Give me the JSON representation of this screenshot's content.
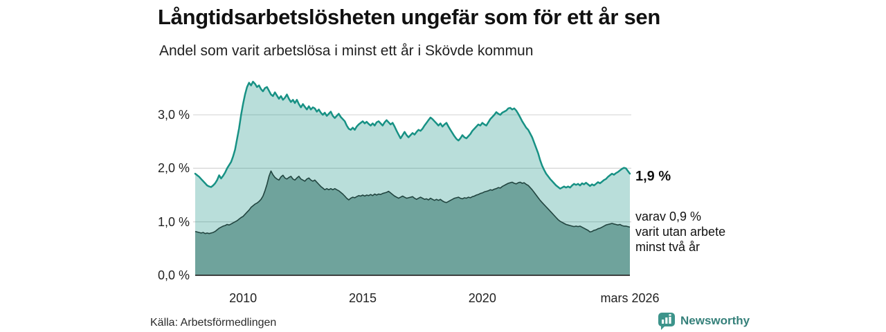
{
  "header": {
    "title": "Långtidsarbetslösheten ungefär som för ett år sen",
    "subtitle": "Andel som varit arbetslösa i minst ett år i Skövde kommun"
  },
  "annotations": {
    "primary_value": "1,9 %",
    "secondary_lines": [
      "varav 0,9 %",
      "varit utan arbete",
      "minst två år"
    ]
  },
  "footer": {
    "source": "Källa: Arbetsförmedlingen",
    "brand_name": "Newsworthy",
    "brand_icon": "bar-chart-speech-bubble-icon"
  },
  "colors": {
    "line_primary": "#179184",
    "area_primary": "rgba(23,145,132,0.30)",
    "line_secondary": "#21443f",
    "area_secondary": "#6fa39c",
    "gridline": "#d9d9d9",
    "axis_line": "#2b2b2b",
    "text": "#1a1a1a",
    "brand_teal": "#3d948b",
    "brand_text": "#35807a"
  },
  "chart_data": {
    "type": "area",
    "title": "Långtidsarbetslösheten ungefär som för ett år sen",
    "subtitle_as_ylabel": "Andel som varit arbetslösa i minst ett år i Skövde kommun",
    "unit": "%",
    "grid": "horizontal",
    "legend_position": "none",
    "x_domain": [
      2008.0,
      2026.1667
    ],
    "x_start": 2008.0,
    "x_step_years": 0.0833333,
    "ylim": [
      0,
      3.75
    ],
    "x_ticks": [
      {
        "label": "2010",
        "year": 2010
      },
      {
        "label": "2015",
        "year": 2015
      },
      {
        "label": "2020",
        "year": 2020
      },
      {
        "label": "mars 2026",
        "year": 2026.1667
      }
    ],
    "y_ticks": [
      {
        "label": "0,0 %",
        "value": 0
      },
      {
        "label": "1,0 %",
        "value": 1
      },
      {
        "label": "2,0 %",
        "value": 2
      },
      {
        "label": "3,0 %",
        "value": 3
      }
    ],
    "series": [
      {
        "name": "Andel arbetslösa minst ett år",
        "end_value": 1.9,
        "end_label": "1,9 %",
        "values": [
          1.9,
          1.87,
          1.84,
          1.8,
          1.76,
          1.72,
          1.68,
          1.66,
          1.65,
          1.68,
          1.72,
          1.78,
          1.87,
          1.81,
          1.86,
          1.92,
          2.0,
          2.06,
          2.12,
          2.22,
          2.35,
          2.55,
          2.75,
          3.0,
          3.2,
          3.38,
          3.52,
          3.6,
          3.55,
          3.62,
          3.58,
          3.52,
          3.55,
          3.48,
          3.44,
          3.5,
          3.52,
          3.45,
          3.38,
          3.35,
          3.42,
          3.36,
          3.3,
          3.35,
          3.28,
          3.32,
          3.38,
          3.3,
          3.24,
          3.28,
          3.22,
          3.28,
          3.2,
          3.14,
          3.2,
          3.15,
          3.1,
          3.16,
          3.1,
          3.14,
          3.12,
          3.06,
          3.1,
          3.04,
          3.0,
          3.04,
          2.98,
          3.02,
          3.06,
          2.98,
          2.94,
          2.98,
          3.02,
          2.96,
          2.92,
          2.88,
          2.8,
          2.74,
          2.72,
          2.76,
          2.72,
          2.78,
          2.82,
          2.85,
          2.88,
          2.84,
          2.87,
          2.83,
          2.8,
          2.84,
          2.8,
          2.86,
          2.88,
          2.84,
          2.8,
          2.86,
          2.9,
          2.86,
          2.82,
          2.85,
          2.78,
          2.7,
          2.63,
          2.56,
          2.62,
          2.68,
          2.62,
          2.58,
          2.62,
          2.66,
          2.63,
          2.68,
          2.72,
          2.7,
          2.74,
          2.8,
          2.85,
          2.9,
          2.95,
          2.92,
          2.88,
          2.84,
          2.8,
          2.84,
          2.78,
          2.82,
          2.85,
          2.78,
          2.72,
          2.66,
          2.6,
          2.55,
          2.52,
          2.56,
          2.62,
          2.58,
          2.56,
          2.6,
          2.64,
          2.7,
          2.74,
          2.78,
          2.82,
          2.8,
          2.85,
          2.82,
          2.8,
          2.86,
          2.92,
          2.96,
          3.0,
          3.05,
          3.02,
          3.0,
          3.04,
          3.06,
          3.08,
          3.12,
          3.13,
          3.1,
          3.12,
          3.08,
          3.02,
          2.95,
          2.88,
          2.82,
          2.76,
          2.72,
          2.65,
          2.58,
          2.48,
          2.38,
          2.28,
          2.15,
          2.05,
          1.97,
          1.9,
          1.85,
          1.8,
          1.76,
          1.72,
          1.68,
          1.65,
          1.62,
          1.64,
          1.66,
          1.64,
          1.66,
          1.64,
          1.68,
          1.71,
          1.69,
          1.71,
          1.68,
          1.72,
          1.7,
          1.73,
          1.7,
          1.67,
          1.7,
          1.68,
          1.71,
          1.74,
          1.72,
          1.75,
          1.78,
          1.8,
          1.84,
          1.87,
          1.9,
          1.88,
          1.91,
          1.93,
          1.96,
          1.99,
          2.01,
          2.0,
          1.95,
          1.9
        ]
      },
      {
        "name": "varav utan arbete minst två år",
        "end_value": 0.9,
        "end_label": "varav 0,9 % varit utan arbete minst två år",
        "values": [
          0.82,
          0.81,
          0.8,
          0.79,
          0.8,
          0.78,
          0.79,
          0.78,
          0.79,
          0.8,
          0.82,
          0.85,
          0.88,
          0.9,
          0.92,
          0.93,
          0.95,
          0.94,
          0.96,
          0.98,
          1.0,
          1.02,
          1.05,
          1.08,
          1.1,
          1.14,
          1.18,
          1.22,
          1.27,
          1.3,
          1.33,
          1.35,
          1.38,
          1.42,
          1.48,
          1.58,
          1.7,
          1.85,
          1.95,
          1.88,
          1.83,
          1.8,
          1.78,
          1.84,
          1.87,
          1.82,
          1.8,
          1.83,
          1.85,
          1.8,
          1.78,
          1.82,
          1.85,
          1.8,
          1.78,
          1.76,
          1.8,
          1.82,
          1.78,
          1.76,
          1.78,
          1.74,
          1.7,
          1.66,
          1.63,
          1.6,
          1.62,
          1.6,
          1.62,
          1.6,
          1.62,
          1.6,
          1.58,
          1.55,
          1.52,
          1.48,
          1.44,
          1.41,
          1.44,
          1.46,
          1.45,
          1.47,
          1.49,
          1.48,
          1.5,
          1.48,
          1.5,
          1.49,
          1.51,
          1.49,
          1.52,
          1.5,
          1.52,
          1.51,
          1.53,
          1.54,
          1.55,
          1.57,
          1.54,
          1.51,
          1.48,
          1.46,
          1.44,
          1.46,
          1.48,
          1.46,
          1.44,
          1.45,
          1.46,
          1.47,
          1.44,
          1.42,
          1.44,
          1.46,
          1.44,
          1.42,
          1.43,
          1.41,
          1.44,
          1.42,
          1.4,
          1.42,
          1.4,
          1.42,
          1.39,
          1.37,
          1.36,
          1.38,
          1.4,
          1.42,
          1.44,
          1.45,
          1.46,
          1.44,
          1.43,
          1.45,
          1.44,
          1.46,
          1.45,
          1.47,
          1.48,
          1.5,
          1.51,
          1.53,
          1.54,
          1.56,
          1.57,
          1.58,
          1.6,
          1.59,
          1.61,
          1.62,
          1.64,
          1.63,
          1.66,
          1.68,
          1.7,
          1.72,
          1.73,
          1.74,
          1.72,
          1.71,
          1.73,
          1.74,
          1.72,
          1.73,
          1.7,
          1.68,
          1.64,
          1.6,
          1.55,
          1.5,
          1.45,
          1.4,
          1.36,
          1.32,
          1.28,
          1.24,
          1.2,
          1.16,
          1.12,
          1.08,
          1.04,
          1.01,
          0.99,
          0.97,
          0.95,
          0.94,
          0.93,
          0.92,
          0.91,
          0.92,
          0.91,
          0.92,
          0.9,
          0.88,
          0.86,
          0.84,
          0.81,
          0.82,
          0.84,
          0.85,
          0.87,
          0.88,
          0.9,
          0.92,
          0.94,
          0.95,
          0.96,
          0.97,
          0.96,
          0.95,
          0.94,
          0.95,
          0.93,
          0.92,
          0.92,
          0.91,
          0.9
        ]
      }
    ]
  }
}
